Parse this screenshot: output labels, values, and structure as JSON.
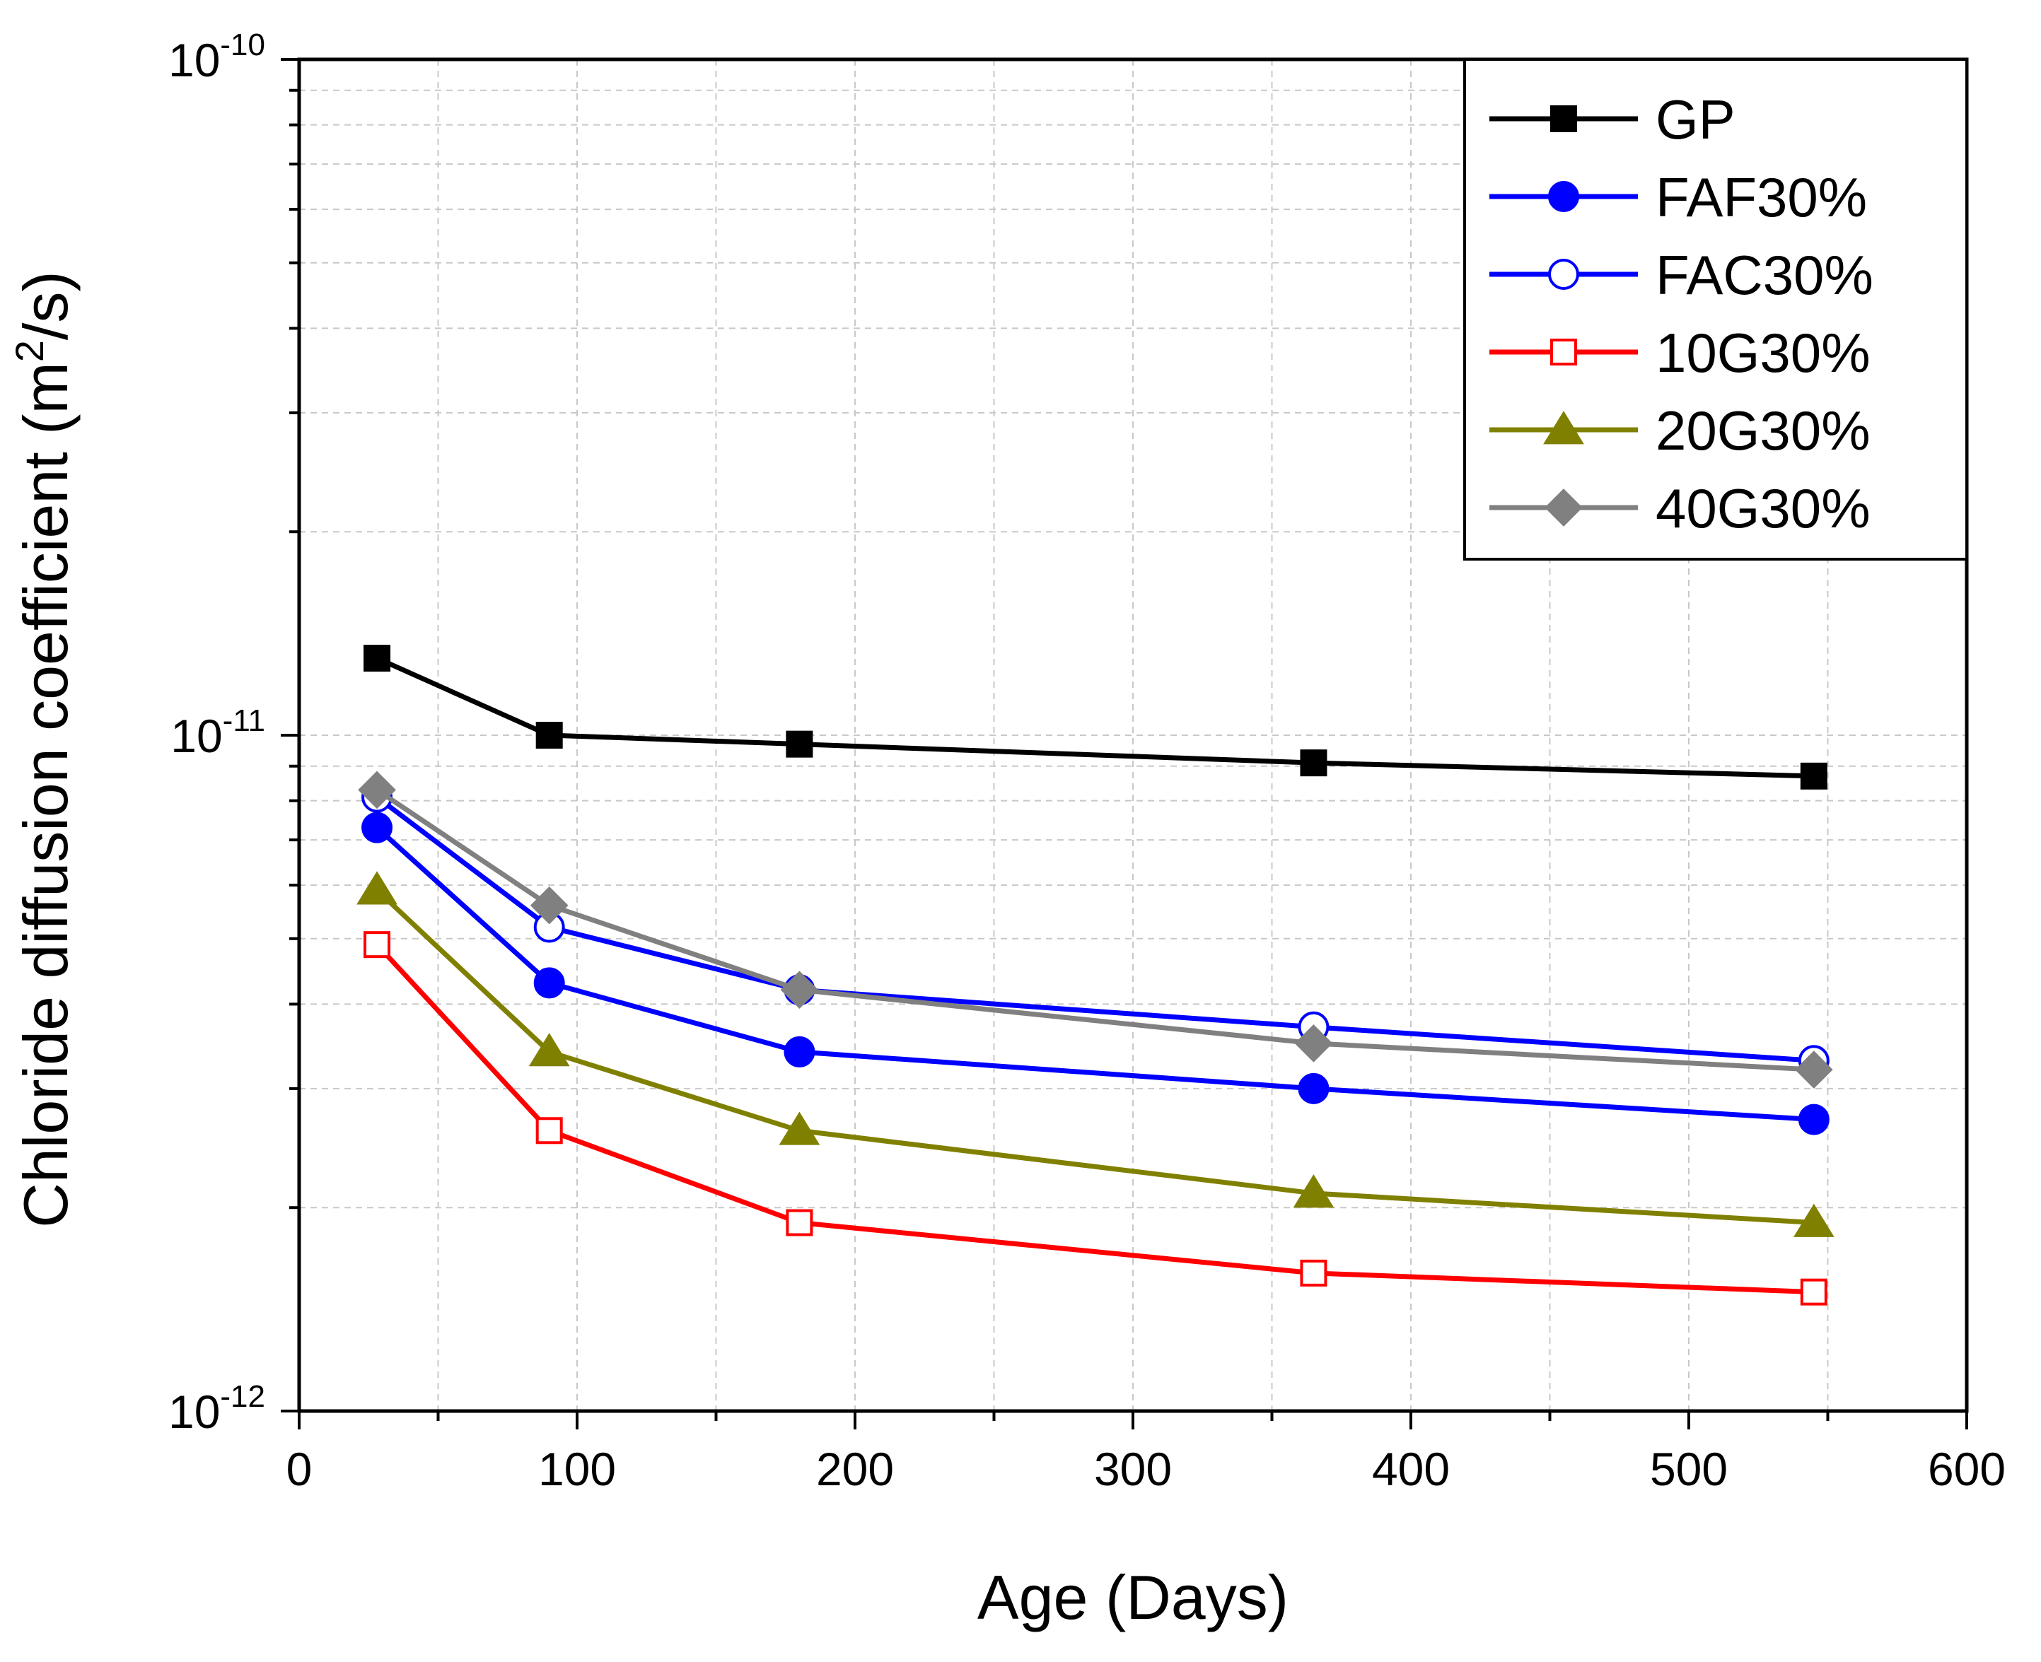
{
  "chart_data": {
    "type": "line",
    "xlabel": "Age (Days)",
    "ylabel": {
      "prefix": "Chloride diffusion coefficient (m",
      "sup": "2",
      "suffix": "/s)"
    },
    "xlim": [
      0,
      600
    ],
    "ylim": [
      1e-12,
      1e-10
    ],
    "yscale": "log",
    "grid": true,
    "legend_position": "top-right",
    "x_ticks": [
      {
        "value": 0,
        "label": "0"
      },
      {
        "value": 100,
        "label": "100"
      },
      {
        "value": 200,
        "label": "200"
      },
      {
        "value": 300,
        "label": "300"
      },
      {
        "value": 400,
        "label": "400"
      },
      {
        "value": 500,
        "label": "500"
      },
      {
        "value": 600,
        "label": "600"
      }
    ],
    "y_ticks": [
      {
        "value": 1e-12,
        "base": "10",
        "exp": "-12"
      },
      {
        "value": 1e-11,
        "base": "10",
        "exp": "-11"
      },
      {
        "value": 1e-10,
        "base": "10",
        "exp": "-10"
      }
    ],
    "x": [
      28,
      90,
      180,
      365,
      545
    ],
    "series": [
      {
        "name": "GP",
        "color": "#000000",
        "marker": "square",
        "filled": true,
        "values": [
          1.3e-11,
          1e-11,
          9.7e-12,
          9.1e-12,
          8.7e-12
        ]
      },
      {
        "name": "FAF30%",
        "color": "#0000ff",
        "marker": "circle",
        "filled": true,
        "values": [
          7.3e-12,
          4.3e-12,
          3.4e-12,
          3e-12,
          2.7e-12
        ]
      },
      {
        "name": "FAC30%",
        "color": "#0000ff",
        "marker": "circle",
        "filled": false,
        "values": [
          8.1e-12,
          5.2e-12,
          4.2e-12,
          3.7e-12,
          3.3e-12
        ]
      },
      {
        "name": "10G30%",
        "color": "#ff0000",
        "marker": "square",
        "filled": false,
        "values": [
          4.9e-12,
          2.6e-12,
          1.9e-12,
          1.6e-12,
          1.5e-12
        ]
      },
      {
        "name": "20G30%",
        "color": "#808000",
        "marker": "triangle",
        "filled": true,
        "values": [
          5.9e-12,
          3.4e-12,
          2.6e-12,
          2.1e-12,
          1.9e-12
        ]
      },
      {
        "name": "40G30%",
        "color": "#808080",
        "marker": "diamond",
        "filled": true,
        "values": [
          8.3e-12,
          5.6e-12,
          4.2e-12,
          3.5e-12,
          3.2e-12
        ]
      }
    ]
  }
}
